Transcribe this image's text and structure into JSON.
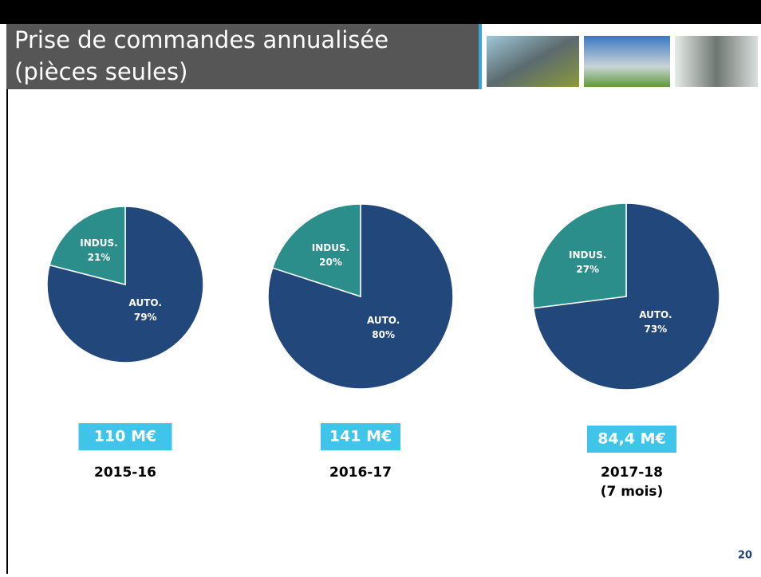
{
  "header": {
    "title_lines": [
      "Prise de commandes annualisée",
      "(pièces seules)"
    ]
  },
  "page_number": "20",
  "chart_data": [
    {
      "type": "pie",
      "categories": [
        "AUTO.",
        "INDUS."
      ],
      "values": [
        79,
        21
      ],
      "value_labels": [
        "79%",
        "21%"
      ],
      "colors": [
        "#22477a",
        "#2b8e8b"
      ],
      "total": "110 M€",
      "period": [
        "2015-16"
      ]
    },
    {
      "type": "pie",
      "categories": [
        "AUTO.",
        "INDUS."
      ],
      "values": [
        80,
        20
      ],
      "value_labels": [
        "80%",
        "20%"
      ],
      "colors": [
        "#22477a",
        "#2b8e8b"
      ],
      "total": "141 M€",
      "period": [
        "2016-17"
      ]
    },
    {
      "type": "pie",
      "categories": [
        "AUTO.",
        "INDUS."
      ],
      "values": [
        73,
        27
      ],
      "value_labels": [
        "73%",
        "27%"
      ],
      "colors": [
        "#22477a",
        "#2b8e8b"
      ],
      "total": "84,4 M€",
      "period": [
        "2017-18",
        "(7 mois)"
      ]
    }
  ]
}
